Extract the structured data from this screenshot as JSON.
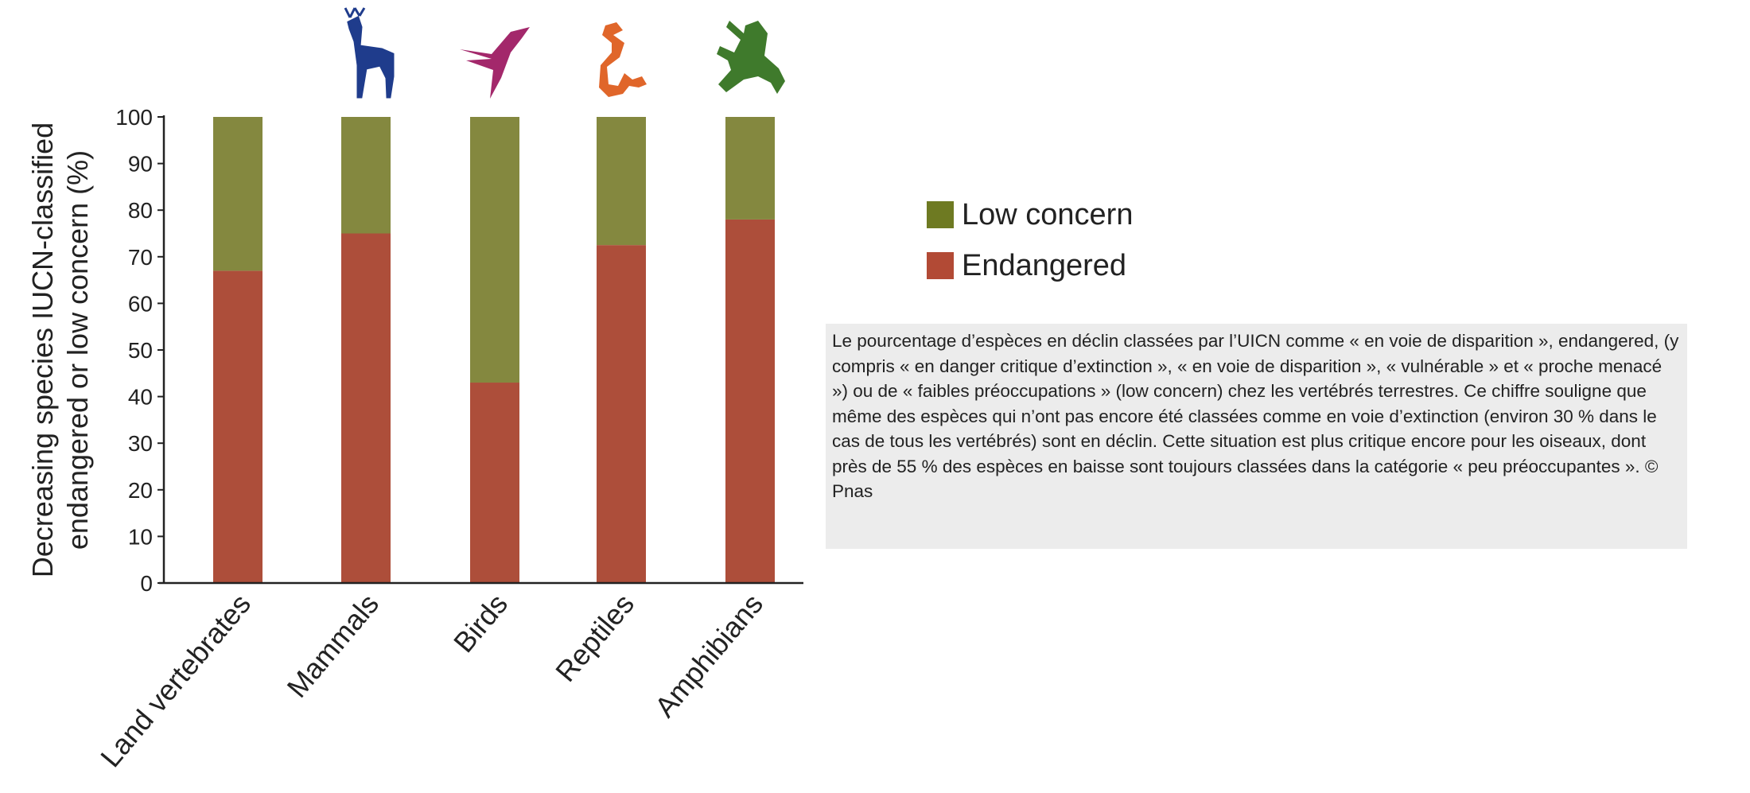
{
  "chart_data": {
    "type": "bar",
    "stacked": true,
    "categories": [
      "Land vertebrates",
      "Mammals",
      "Birds",
      "Reptiles",
      "Amphibians"
    ],
    "series": [
      {
        "name": "Endangered",
        "values": [
          67,
          75,
          43,
          72.5,
          78
        ],
        "color": "#ad4e3a"
      },
      {
        "name": "Low concern",
        "values": [
          33,
          25,
          57,
          27.5,
          22
        ],
        "color": "#84883f"
      }
    ],
    "title": "",
    "xlabel": "",
    "ylabel": [
      "Decreasing species IUCN-classified",
      "endangered or low concern (%)"
    ],
    "ylim": [
      0,
      100
    ],
    "yticks": [
      "0",
      "10",
      "20",
      "30",
      "40",
      "50",
      "60",
      "70",
      "80",
      "90",
      "100"
    ],
    "grid": false,
    "legend_placement": "right",
    "icons": [
      {
        "category": "Mammals",
        "name": "deer-icon",
        "color": "#1f3c8c"
      },
      {
        "category": "Birds",
        "name": "bird-icon",
        "color": "#a3286b"
      },
      {
        "category": "Reptiles",
        "name": "snake-icon",
        "color": "#e0662a"
      },
      {
        "category": "Amphibians",
        "name": "frog-icon",
        "color": "#3f7a2c"
      }
    ]
  },
  "legend": {
    "items": [
      {
        "label": "Low concern",
        "color": "#6e7a22"
      },
      {
        "label": "Endangered",
        "color": "#b24a35"
      }
    ]
  },
  "caption": {
    "text": "Le pourcentage d’espèces en déclin classées par l’UICN comme « en voie de disparition », endangered, (y compris « en danger critique d’extinction », « en voie de disparition », « vulnérable » et « proche menacé ») ou de « faibles préoccupations » (low concern) chez les vertébrés terrestres. Ce chiffre souligne que même des espèces qui n’ont pas encore été classées comme en voie d’extinction (environ 30 % dans le cas de tous les vertébrés) sont en déclin. Cette situation est plus critique encore pour les oiseaux, dont près de 55 % des espèces en baisse sont toujours classées dans la catégorie « peu préoccupantes ». © Pnas"
  }
}
